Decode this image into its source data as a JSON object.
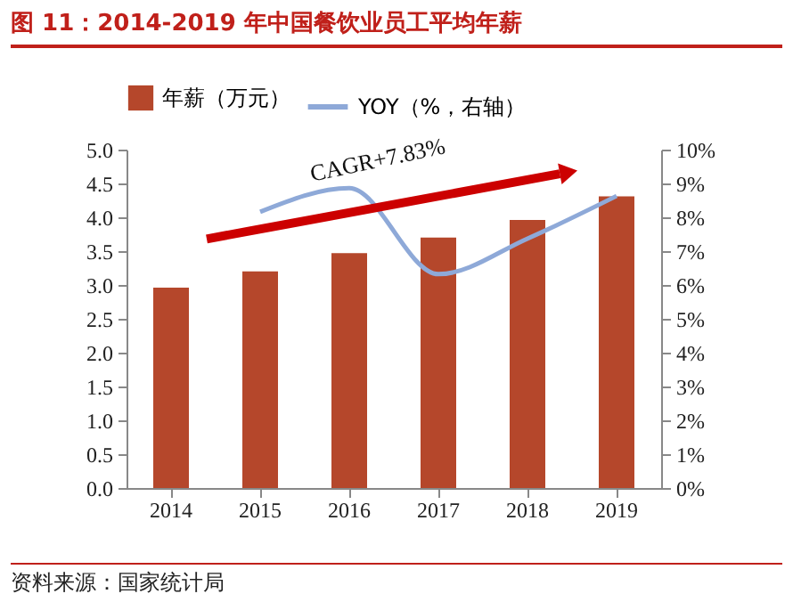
{
  "chart_data": {
    "type": "bar",
    "title": "图 11：2014-2019 年中国餐饮业员工平均年薪",
    "categories": [
      "2014",
      "2015",
      "2016",
      "2017",
      "2018",
      "2019"
    ],
    "series": [
      {
        "name": "年薪（万元）",
        "color": "#b5472b",
        "values": [
          2.96,
          3.2,
          3.47,
          3.7,
          3.96,
          4.31
        ]
      },
      {
        "name": "YOY（%，右轴）",
        "type": "line",
        "axis": "y2",
        "color": "#8ea9d8",
        "values": [
          null,
          8.16,
          8.86,
          6.32,
          7.37,
          8.63
        ]
      }
    ],
    "ylim": [
      0,
      5
    ],
    "yticks": [
      {
        "value": 0,
        "label": "0.0"
      },
      {
        "value": 0.5,
        "label": "0.5"
      },
      {
        "value": 1,
        "label": "1.0"
      },
      {
        "value": 1.5,
        "label": "1.5"
      },
      {
        "value": 2,
        "label": "2.0"
      },
      {
        "value": 2.5,
        "label": "2.5"
      },
      {
        "value": 3,
        "label": "3.0"
      },
      {
        "value": 3.5,
        "label": "3.5"
      },
      {
        "value": 4,
        "label": "4.0"
      },
      {
        "value": 4.5,
        "label": "4.5"
      },
      {
        "value": 5,
        "label": "5.0"
      }
    ],
    "y2lim": [
      0,
      10
    ],
    "y2ticks": [
      {
        "value": 0,
        "label": "0%"
      },
      {
        "value": 1,
        "label": "1%"
      },
      {
        "value": 2,
        "label": "2%"
      },
      {
        "value": 3,
        "label": "3%"
      },
      {
        "value": 4,
        "label": "4%"
      },
      {
        "value": 5,
        "label": "5%"
      },
      {
        "value": 6,
        "label": "6%"
      },
      {
        "value": 7,
        "label": "7%"
      },
      {
        "value": 8,
        "label": "8%"
      },
      {
        "value": 9,
        "label": "9%"
      },
      {
        "value": 10,
        "label": "10%"
      }
    ],
    "legend": "top",
    "grid": false,
    "annotations": [
      "CAGR+7.83%",
      "资料来源：国家统计局"
    ]
  }
}
